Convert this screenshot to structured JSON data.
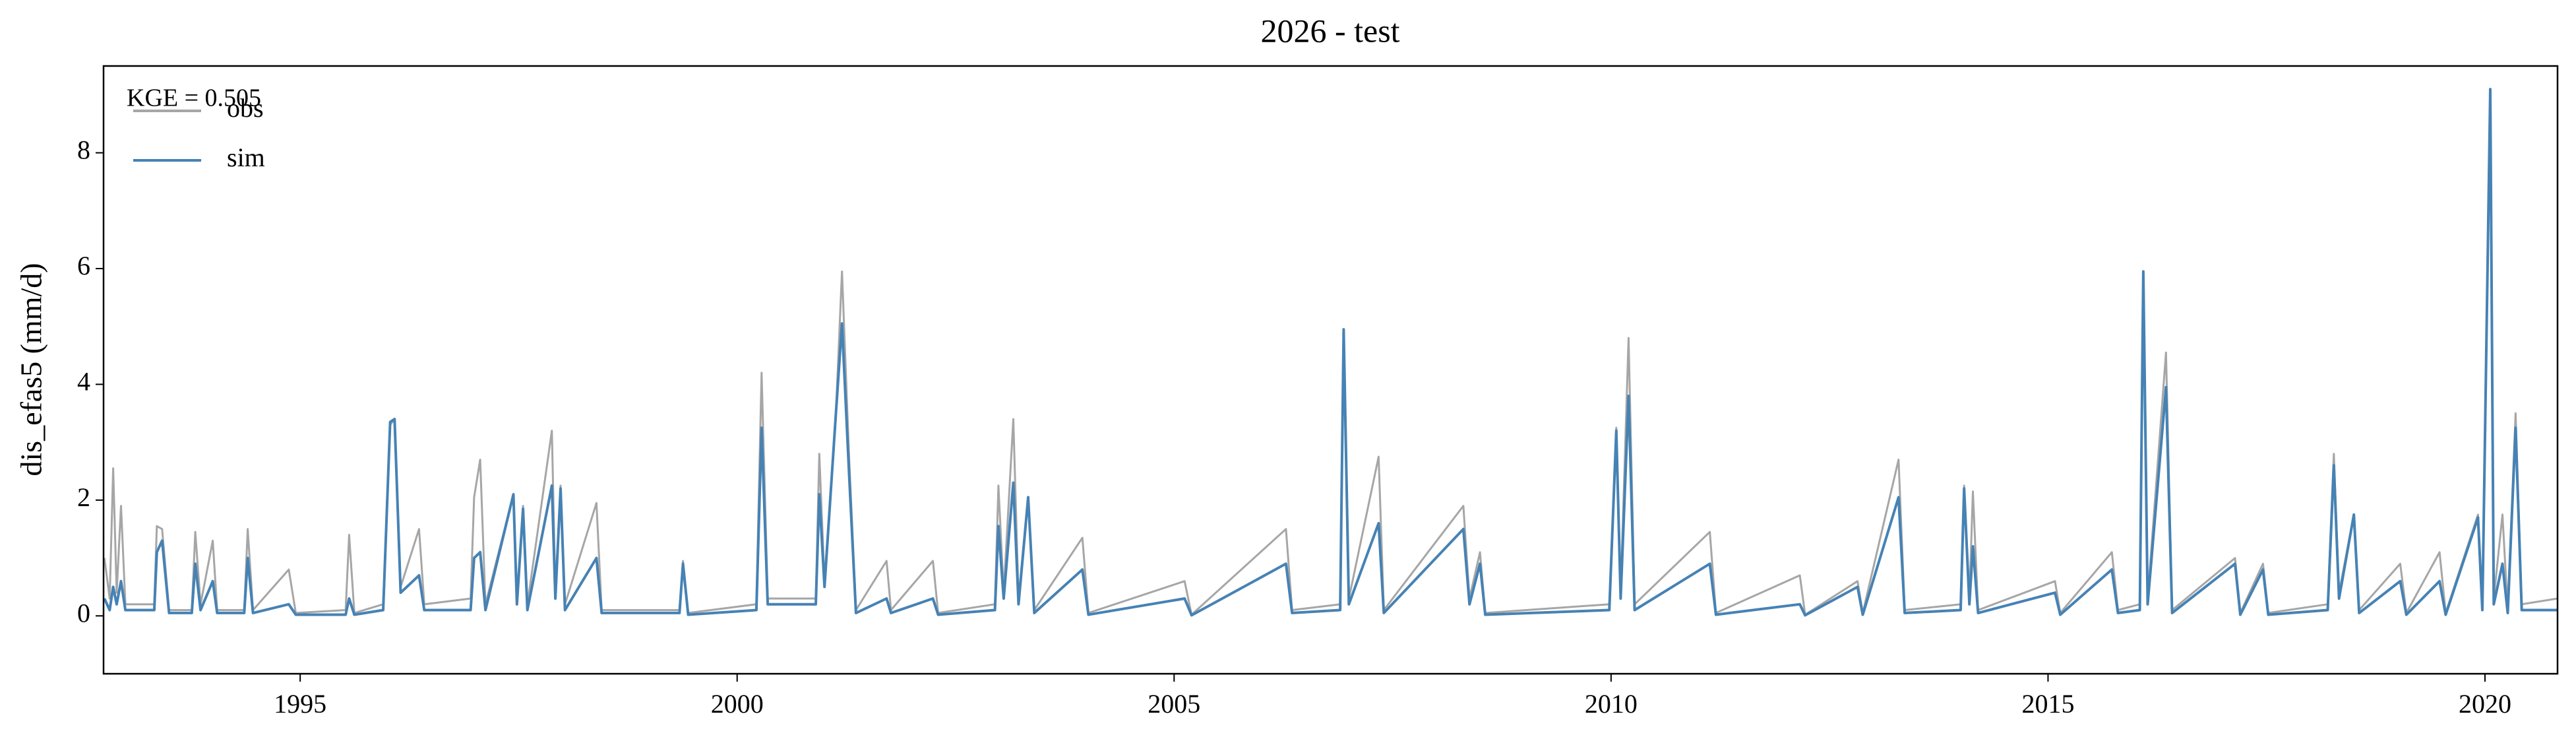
{
  "chart_data": {
    "type": "line",
    "title": "2026 - test",
    "ylabel": "dis_efas5 (mm/d)",
    "annotation": "KGE = 0.505",
    "x": [
      1992.76,
      1992.82,
      1992.86,
      1992.9,
      1992.95,
      1993.0,
      1993.33,
      1993.36,
      1993.42,
      1993.5,
      1993.76,
      1993.8,
      1993.86,
      1994.0,
      1994.05,
      1994.36,
      1994.4,
      1994.46,
      1994.87,
      1994.95,
      1995.52,
      1995.56,
      1995.62,
      1995.95,
      1996.03,
      1996.08,
      1996.15,
      1996.36,
      1996.42,
      1996.95,
      1996.99,
      1997.06,
      1997.12,
      1997.44,
      1997.48,
      1997.55,
      1997.6,
      1997.88,
      1997.92,
      1997.98,
      1998.03,
      1998.39,
      1998.45,
      1999.34,
      1999.38,
      1999.44,
      2000.22,
      2000.28,
      2000.35,
      2000.9,
      2000.94,
      2001.0,
      2001.13,
      2001.2,
      2001.28,
      2001.36,
      2001.71,
      2001.76,
      2002.24,
      2002.3,
      2002.95,
      2002.99,
      2003.05,
      2003.16,
      2003.22,
      2003.33,
      2003.4,
      2003.95,
      2004.02,
      2005.12,
      2005.2,
      2006.28,
      2006.35,
      2006.9,
      2006.94,
      2007.0,
      2007.34,
      2007.4,
      2008.31,
      2008.38,
      2008.5,
      2008.56,
      2009.98,
      2010.06,
      2010.11,
      2010.2,
      2010.27,
      2011.13,
      2011.2,
      2012.16,
      2012.22,
      2012.82,
      2012.88,
      2013.29,
      2013.36,
      2014.0,
      2014.04,
      2014.1,
      2014.14,
      2014.2,
      2015.08,
      2015.14,
      2015.73,
      2015.8,
      2016.05,
      2016.09,
      2016.14,
      2016.35,
      2016.42,
      2017.14,
      2017.2,
      2017.46,
      2017.52,
      2018.2,
      2018.27,
      2018.33,
      2018.5,
      2018.56,
      2019.03,
      2019.1,
      2019.48,
      2019.55,
      2019.92,
      2019.97,
      2020.06,
      2020.1,
      2020.2,
      2020.26,
      2020.35,
      2020.42,
      2020.83
    ],
    "series": [
      {
        "name": "obs",
        "color": "#a6a6a6",
        "values": [
          1.0,
          0.3,
          2.55,
          0.4,
          1.9,
          0.2,
          0.2,
          1.55,
          1.5,
          0.1,
          0.1,
          1.45,
          0.2,
          1.3,
          0.1,
          0.1,
          1.5,
          0.1,
          0.8,
          0.05,
          0.1,
          1.4,
          0.05,
          0.2,
          3.3,
          3.4,
          0.5,
          1.5,
          0.2,
          0.3,
          2.05,
          2.7,
          0.2,
          2.1,
          0.3,
          1.9,
          0.2,
          3.2,
          0.4,
          2.25,
          0.2,
          1.95,
          0.1,
          0.1,
          0.95,
          0.05,
          0.2,
          4.2,
          0.3,
          0.3,
          2.8,
          0.6,
          3.5,
          5.95,
          2.8,
          0.1,
          0.95,
          0.1,
          0.95,
          0.05,
          0.2,
          2.25,
          0.4,
          3.4,
          0.3,
          2.05,
          0.1,
          1.35,
          0.05,
          0.6,
          0.02,
          1.5,
          0.1,
          0.2,
          4.95,
          0.3,
          2.75,
          0.1,
          1.9,
          0.3,
          1.1,
          0.05,
          0.2,
          3.25,
          0.4,
          4.8,
          0.2,
          1.45,
          0.05,
          0.7,
          0.02,
          0.6,
          0.05,
          2.7,
          0.1,
          0.2,
          2.25,
          0.3,
          2.15,
          0.1,
          0.6,
          0.05,
          1.1,
          0.1,
          0.2,
          5.95,
          0.3,
          4.55,
          0.1,
          1.0,
          0.05,
          0.9,
          0.05,
          0.2,
          2.8,
          0.4,
          1.75,
          0.1,
          0.9,
          0.05,
          1.1,
          0.05,
          1.75,
          0.2,
          9.1,
          0.3,
          1.75,
          0.1,
          3.5,
          0.2,
          0.3
        ]
      },
      {
        "name": "sim",
        "color": "#4682b4",
        "values": [
          0.3,
          0.1,
          0.5,
          0.2,
          0.6,
          0.1,
          0.1,
          1.1,
          1.3,
          0.05,
          0.05,
          0.9,
          0.1,
          0.6,
          0.05,
          0.05,
          1.0,
          0.05,
          0.2,
          0.02,
          0.02,
          0.3,
          0.02,
          0.1,
          3.35,
          3.4,
          0.4,
          0.7,
          0.1,
          0.1,
          1.0,
          1.1,
          0.1,
          2.1,
          0.2,
          1.85,
          0.1,
          2.25,
          0.3,
          2.2,
          0.1,
          1.0,
          0.05,
          0.05,
          0.9,
          0.02,
          0.1,
          3.25,
          0.2,
          0.2,
          2.1,
          0.5,
          3.5,
          5.05,
          2.5,
          0.05,
          0.3,
          0.05,
          0.3,
          0.02,
          0.1,
          1.55,
          0.3,
          2.3,
          0.2,
          2.05,
          0.05,
          0.8,
          0.02,
          0.3,
          0.01,
          0.9,
          0.05,
          0.1,
          4.95,
          0.2,
          1.6,
          0.05,
          1.5,
          0.2,
          0.9,
          0.02,
          0.1,
          3.2,
          0.3,
          3.8,
          0.1,
          0.9,
          0.02,
          0.2,
          0.01,
          0.5,
          0.02,
          2.05,
          0.05,
          0.1,
          2.2,
          0.2,
          1.2,
          0.05,
          0.4,
          0.02,
          0.8,
          0.05,
          0.1,
          5.95,
          0.2,
          3.95,
          0.05,
          0.9,
          0.02,
          0.8,
          0.02,
          0.1,
          2.6,
          0.3,
          1.75,
          0.05,
          0.6,
          0.02,
          0.6,
          0.02,
          1.7,
          0.1,
          9.1,
          0.2,
          0.9,
          0.05,
          3.25,
          0.1,
          0.1
        ]
      }
    ],
    "xlim": [
      1992.75,
      2020.83
    ],
    "xticks": [
      1995,
      2000,
      2005,
      2010,
      2015,
      2020
    ],
    "ylim": [
      -1,
      9.5
    ],
    "yticks": [
      0,
      2,
      4,
      6,
      8
    ],
    "grid": false,
    "legend": "upper left"
  }
}
